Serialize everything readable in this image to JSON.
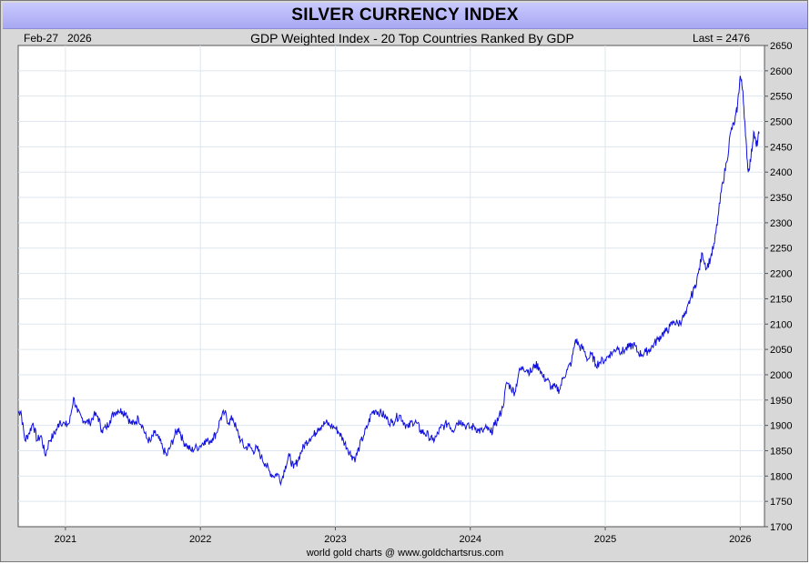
{
  "title": "SILVER CURRENCY INDEX",
  "header": {
    "date": "Feb-27",
    "year": "2026",
    "subtitle": "GDP Weighted Index - 20 Top Countries Ranked By GDP",
    "last": "Last = 2476"
  },
  "footer": "world gold charts @ www.goldchartsrus.com",
  "colors": {
    "line": "#1010e0",
    "frame": "#d8d8d8",
    "title_bg": "#b8b8f8",
    "grid": "#dde6ee"
  },
  "chart_data": {
    "type": "line",
    "title": "SILVER CURRENCY INDEX",
    "subtitle": "GDP Weighted Index - 20 Top Countries Ranked By GDP",
    "xlabel": "",
    "ylabel": "",
    "ylim": [
      1700,
      2650
    ],
    "xlim": [
      2020.65,
      2026.18
    ],
    "yticks": [
      1700,
      1750,
      1800,
      1850,
      1900,
      1950,
      2000,
      2050,
      2100,
      2150,
      2200,
      2250,
      2300,
      2350,
      2400,
      2450,
      2500,
      2550,
      2600,
      2650
    ],
    "xticks": [
      "2021",
      "2022",
      "2023",
      "2024",
      "2025",
      "2026"
    ],
    "xtick_values": [
      2021,
      2022,
      2023,
      2024,
      2025,
      2026
    ],
    "grid": true,
    "last_value": 2476,
    "series": [
      {
        "values": [
          [
            2020.65,
            1925
          ],
          [
            2020.67,
            1928
          ],
          [
            2020.7,
            1870
          ],
          [
            2020.73,
            1885
          ],
          [
            2020.76,
            1905
          ],
          [
            2020.79,
            1870
          ],
          [
            2020.82,
            1880
          ],
          [
            2020.85,
            1840
          ],
          [
            2020.88,
            1870
          ],
          [
            2020.91,
            1880
          ],
          [
            2020.94,
            1895
          ],
          [
            2020.96,
            1910
          ],
          [
            2021.0,
            1900
          ],
          [
            2021.03,
            1905
          ],
          [
            2021.06,
            1955
          ],
          [
            2021.09,
            1925
          ],
          [
            2021.12,
            1915
          ],
          [
            2021.15,
            1908
          ],
          [
            2021.18,
            1905
          ],
          [
            2021.21,
            1920
          ],
          [
            2021.24,
            1918
          ],
          [
            2021.27,
            1890
          ],
          [
            2021.3,
            1895
          ],
          [
            2021.33,
            1910
          ],
          [
            2021.36,
            1925
          ],
          [
            2021.39,
            1930
          ],
          [
            2021.42,
            1928
          ],
          [
            2021.45,
            1925
          ],
          [
            2021.48,
            1905
          ],
          [
            2021.51,
            1903
          ],
          [
            2021.54,
            1915
          ],
          [
            2021.57,
            1900
          ],
          [
            2021.6,
            1875
          ],
          [
            2021.63,
            1868
          ],
          [
            2021.66,
            1885
          ],
          [
            2021.69,
            1875
          ],
          [
            2021.72,
            1855
          ],
          [
            2021.75,
            1840
          ],
          [
            2021.78,
            1860
          ],
          [
            2021.81,
            1880
          ],
          [
            2021.84,
            1895
          ],
          [
            2021.87,
            1870
          ],
          [
            2021.9,
            1860
          ],
          [
            2021.93,
            1850
          ],
          [
            2021.96,
            1855
          ],
          [
            2022.0,
            1860
          ],
          [
            2022.03,
            1870
          ],
          [
            2022.06,
            1868
          ],
          [
            2022.09,
            1875
          ],
          [
            2022.12,
            1885
          ],
          [
            2022.15,
            1915
          ],
          [
            2022.18,
            1925
          ],
          [
            2022.21,
            1905
          ],
          [
            2022.24,
            1915
          ],
          [
            2022.27,
            1890
          ],
          [
            2022.3,
            1870
          ],
          [
            2022.33,
            1855
          ],
          [
            2022.36,
            1860
          ],
          [
            2022.39,
            1850
          ],
          [
            2022.42,
            1855
          ],
          [
            2022.45,
            1838
          ],
          [
            2022.48,
            1825
          ],
          [
            2022.51,
            1810
          ],
          [
            2022.54,
            1800
          ],
          [
            2022.57,
            1805
          ],
          [
            2022.6,
            1790
          ],
          [
            2022.63,
            1820
          ],
          [
            2022.66,
            1840
          ],
          [
            2022.69,
            1815
          ],
          [
            2022.72,
            1830
          ],
          [
            2022.75,
            1850
          ],
          [
            2022.78,
            1865
          ],
          [
            2022.81,
            1875
          ],
          [
            2022.84,
            1880
          ],
          [
            2022.87,
            1895
          ],
          [
            2022.9,
            1900
          ],
          [
            2022.93,
            1905
          ],
          [
            2022.96,
            1900
          ],
          [
            2023.0,
            1895
          ],
          [
            2023.03,
            1885
          ],
          [
            2023.06,
            1870
          ],
          [
            2023.09,
            1855
          ],
          [
            2023.12,
            1840
          ],
          [
            2023.15,
            1835
          ],
          [
            2023.18,
            1860
          ],
          [
            2023.21,
            1880
          ],
          [
            2023.24,
            1900
          ],
          [
            2023.27,
            1925
          ],
          [
            2023.3,
            1930
          ],
          [
            2023.33,
            1925
          ],
          [
            2023.36,
            1920
          ],
          [
            2023.39,
            1910
          ],
          [
            2023.42,
            1905
          ],
          [
            2023.45,
            1915
          ],
          [
            2023.48,
            1920
          ],
          [
            2023.51,
            1905
          ],
          [
            2023.54,
            1895
          ],
          [
            2023.57,
            1908
          ],
          [
            2023.6,
            1905
          ],
          [
            2023.63,
            1890
          ],
          [
            2023.66,
            1885
          ],
          [
            2023.69,
            1880
          ],
          [
            2023.72,
            1870
          ],
          [
            2023.75,
            1878
          ],
          [
            2023.78,
            1895
          ],
          [
            2023.81,
            1900
          ],
          [
            2023.84,
            1905
          ],
          [
            2023.87,
            1890
          ],
          [
            2023.9,
            1905
          ],
          [
            2023.93,
            1910
          ],
          [
            2023.96,
            1900
          ],
          [
            2024.0,
            1895
          ],
          [
            2024.03,
            1898
          ],
          [
            2024.06,
            1890
          ],
          [
            2024.09,
            1888
          ],
          [
            2024.12,
            1895
          ],
          [
            2024.15,
            1885
          ],
          [
            2024.18,
            1900
          ],
          [
            2024.21,
            1915
          ],
          [
            2024.24,
            1935
          ],
          [
            2024.27,
            1985
          ],
          [
            2024.3,
            1975
          ],
          [
            2024.33,
            1965
          ],
          [
            2024.36,
            2005
          ],
          [
            2024.39,
            2015
          ],
          [
            2024.42,
            2010
          ],
          [
            2024.45,
            2005
          ],
          [
            2024.48,
            2020
          ],
          [
            2024.51,
            2015
          ],
          [
            2024.54,
            1995
          ],
          [
            2024.57,
            1990
          ],
          [
            2024.6,
            1975
          ],
          [
            2024.63,
            1975
          ],
          [
            2024.66,
            1970
          ],
          [
            2024.69,
            1995
          ],
          [
            2024.72,
            2010
          ],
          [
            2024.75,
            2025
          ],
          [
            2024.78,
            2070
          ],
          [
            2024.81,
            2055
          ],
          [
            2024.84,
            2050
          ],
          [
            2024.87,
            2030
          ],
          [
            2024.9,
            2040
          ],
          [
            2024.93,
            2020
          ],
          [
            2024.96,
            2025
          ],
          [
            2025.0,
            2030
          ],
          [
            2025.03,
            2040
          ],
          [
            2025.06,
            2045
          ],
          [
            2025.09,
            2055
          ],
          [
            2025.12,
            2045
          ],
          [
            2025.15,
            2050
          ],
          [
            2025.18,
            2055
          ],
          [
            2025.21,
            2060
          ],
          [
            2025.24,
            2045
          ],
          [
            2025.27,
            2040
          ],
          [
            2025.3,
            2045
          ],
          [
            2025.33,
            2050
          ],
          [
            2025.36,
            2060
          ],
          [
            2025.39,
            2070
          ],
          [
            2025.42,
            2080
          ],
          [
            2025.45,
            2085
          ],
          [
            2025.48,
            2095
          ],
          [
            2025.51,
            2105
          ],
          [
            2025.54,
            2100
          ],
          [
            2025.57,
            2110
          ],
          [
            2025.6,
            2120
          ],
          [
            2025.63,
            2150
          ],
          [
            2025.66,
            2170
          ],
          [
            2025.69,
            2200
          ],
          [
            2025.72,
            2240
          ],
          [
            2025.75,
            2210
          ],
          [
            2025.78,
            2230
          ],
          [
            2025.81,
            2260
          ],
          [
            2025.84,
            2320
          ],
          [
            2025.87,
            2380
          ],
          [
            2025.9,
            2420
          ],
          [
            2025.93,
            2480
          ],
          [
            2025.96,
            2500
          ],
          [
            2025.98,
            2530
          ],
          [
            2026.0,
            2590
          ],
          [
            2026.02,
            2560
          ],
          [
            2026.04,
            2470
          ],
          [
            2026.06,
            2400
          ],
          [
            2026.08,
            2430
          ],
          [
            2026.1,
            2480
          ],
          [
            2026.12,
            2450
          ],
          [
            2026.14,
            2476
          ]
        ]
      }
    ]
  }
}
